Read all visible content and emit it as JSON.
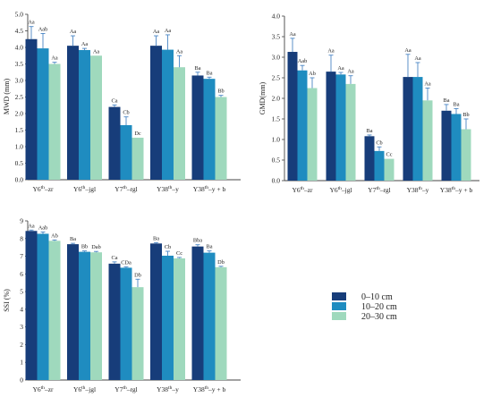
{
  "colors": {
    "0-10 cm": "#173d7a",
    "10-20 cm": "#1f8cc0",
    "20-30 cm": "#9fd9bd",
    "axis": "#444444",
    "error_bar": "#4a86c5"
  },
  "legend": {
    "position": "bottom-right",
    "entries": [
      "0–10 cm",
      "10–20 cm",
      "20–30 cm"
    ]
  },
  "chart_data": [
    {
      "type": "bar",
      "ylabel": "MWD (mm)",
      "ylim": [
        0,
        5.0
      ],
      "yticks": [
        "0.0",
        "0.5",
        "1.0",
        "1.5",
        "2.0",
        "2.5",
        "3.0",
        "3.5",
        "4.0",
        "4.5",
        "5.0"
      ],
      "categories": [
        {
          "base": "Y6",
          "sup": "th",
          "suffix": "–zr"
        },
        {
          "base": "Y6",
          "sup": "th",
          "suffix": "–jgl"
        },
        {
          "base": "Y7",
          "sup": "th",
          "suffix": "–rgl"
        },
        {
          "base": "Y38",
          "sup": "th",
          "suffix": "–y"
        },
        {
          "base": "Y38",
          "sup": "th",
          "suffix": "–y + b"
        }
      ],
      "series": [
        {
          "name": "0–10 cm",
          "values": [
            4.25,
            4.05,
            2.2,
            4.05,
            3.15
          ],
          "errors": [
            0.38,
            0.3,
            0.06,
            0.3,
            0.1
          ],
          "labels": [
            "Aa",
            "Aa",
            "Ca",
            "Aa",
            "Ba"
          ]
        },
        {
          "name": "10–20 cm",
          "values": [
            3.97,
            3.92,
            1.65,
            3.93,
            3.05
          ],
          "errors": [
            0.45,
            0.05,
            0.25,
            0.45,
            0.05
          ],
          "labels": [
            "Aab",
            "Aa",
            "Cb",
            "Aa",
            "Ba"
          ]
        },
        {
          "name": "20–30 cm",
          "values": [
            3.5,
            3.75,
            1.27,
            3.4,
            2.5
          ],
          "errors": [
            0.05,
            0.0,
            0.0,
            0.35,
            0.05
          ],
          "labels": [
            "Aa",
            "Aa",
            "Dc",
            "Aa",
            "Bb"
          ]
        }
      ]
    },
    {
      "type": "bar",
      "ylabel": "GMD(mm)",
      "ylim": [
        0,
        4.0
      ],
      "yticks": [
        "0.0",
        "0.5",
        "1.0",
        "1.5",
        "2.0",
        "2.5",
        "3.0",
        "3.5",
        "4.0"
      ],
      "categories": [
        {
          "base": "Y6",
          "sup": "th",
          "suffix": "–zr"
        },
        {
          "base": "Y6",
          "sup": "th",
          "suffix": "–jgl"
        },
        {
          "base": "Y7",
          "sup": "th",
          "suffix": "–rgl"
        },
        {
          "base": "Y38",
          "sup": "th",
          "suffix": "–y"
        },
        {
          "base": "Y38",
          "sup": "th",
          "suffix": "–y + b"
        }
      ],
      "series": [
        {
          "name": "0–10 cm",
          "values": [
            3.13,
            2.65,
            1.08,
            2.52,
            1.7
          ],
          "errors": [
            0.33,
            0.4,
            0.03,
            0.55,
            0.15
          ],
          "labels": [
            "Aa",
            "Aa",
            "Ba",
            "Aa",
            "Ba"
          ]
        },
        {
          "name": "10–20 cm",
          "values": [
            2.68,
            2.58,
            0.72,
            2.52,
            1.62
          ],
          "errors": [
            0.12,
            0.05,
            0.1,
            0.35,
            0.13
          ],
          "labels": [
            "Aab",
            "Aa",
            "Cb",
            "Aa",
            "Ba"
          ]
        },
        {
          "name": "20–30 cm",
          "values": [
            2.25,
            2.35,
            0.53,
            1.95,
            1.25
          ],
          "errors": [
            0.25,
            0.2,
            0.0,
            0.3,
            0.25
          ],
          "labels": [
            "Ab",
            "Aa",
            "Cc",
            "Aa",
            "Bb"
          ]
        }
      ]
    },
    {
      "type": "bar",
      "ylabel": "SSI (%)",
      "ylim": [
        0,
        9
      ],
      "yticks": [
        "0",
        "1",
        "2",
        "3",
        "4",
        "5",
        "6",
        "7",
        "8",
        "9"
      ],
      "categories": [
        {
          "base": "Y6",
          "sup": "th",
          "suffix": "–zr"
        },
        {
          "base": "Y6",
          "sup": "th",
          "suffix": "–jgl"
        },
        {
          "base": "Y7",
          "sup": "th",
          "suffix": "–rgl"
        },
        {
          "base": "Y38",
          "sup": "th",
          "suffix": "–y"
        },
        {
          "base": "Y38",
          "sup": "th",
          "suffix": "–y + b"
        }
      ],
      "series": [
        {
          "name": "0–10 cm",
          "values": [
            8.43,
            7.68,
            6.58,
            7.72,
            7.55
          ],
          "errors": [
            0.05,
            0.05,
            0.1,
            0.05,
            0.1
          ],
          "labels": [
            "Aa",
            "Ba",
            "Ca",
            "Ba",
            "Bba"
          ]
        },
        {
          "name": "10–20 cm",
          "values": [
            8.27,
            7.25,
            6.35,
            7.03,
            7.2
          ],
          "errors": [
            0.1,
            0.05,
            0.05,
            0.25,
            0.1
          ],
          "labels": [
            "Aab",
            "Bb",
            "CDa",
            "Cb",
            "Ba"
          ]
        },
        {
          "name": "20–30 cm",
          "values": [
            7.87,
            7.22,
            5.25,
            6.88,
            6.38
          ],
          "errors": [
            0.05,
            0.05,
            0.45,
            0.05,
            0.05
          ],
          "labels": [
            "Ab",
            "Dab",
            "Db",
            "Cc",
            "Db"
          ]
        }
      ]
    }
  ]
}
